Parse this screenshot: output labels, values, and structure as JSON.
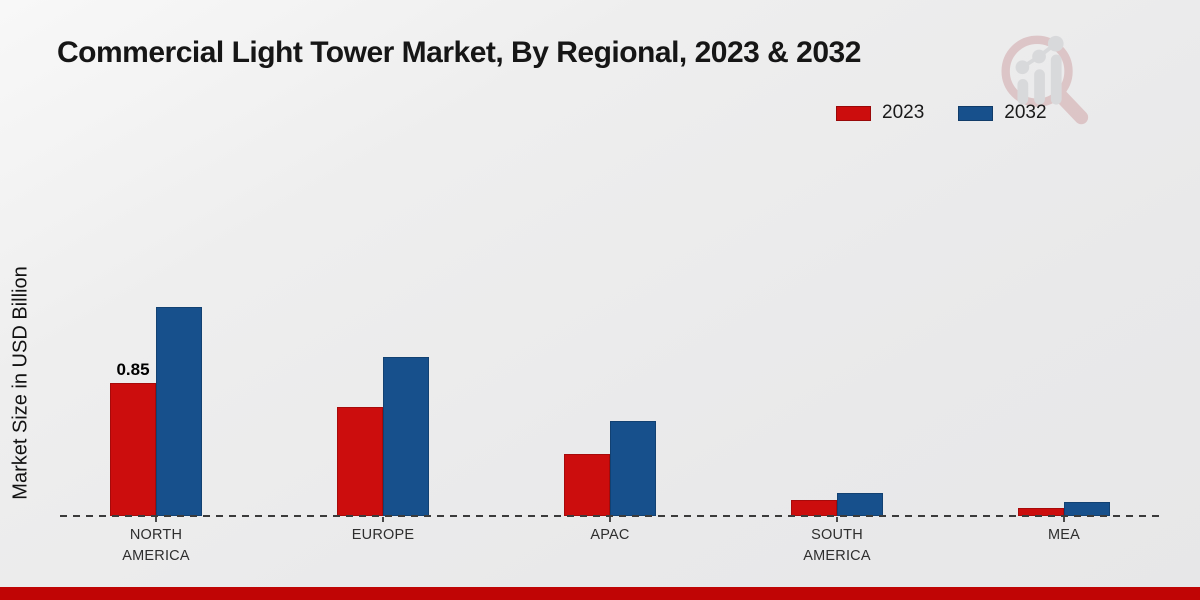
{
  "title": "Commercial Light Tower Market, By Regional, 2023 & 2032",
  "y_axis_label": "Market Size in USD Billion",
  "legend": {
    "position": "top-right",
    "items": [
      {
        "label": "2023",
        "color": "#cc0d0d"
      },
      {
        "label": "2032",
        "color": "#17508c"
      }
    ]
  },
  "chart_data": {
    "type": "bar",
    "categories": [
      "NORTH AMERICA",
      "EUROPE",
      "APAC",
      "SOUTH AMERICA",
      "MEA"
    ],
    "series": [
      {
        "name": "2023",
        "color": "#cc0d0d",
        "values": [
          0.85,
          0.7,
          0.4,
          0.1,
          0.05
        ]
      },
      {
        "name": "2032",
        "color": "#17508c",
        "values": [
          1.34,
          1.02,
          0.61,
          0.15,
          0.09
        ]
      }
    ],
    "annotations": [
      {
        "series_index": 0,
        "category_index": 0,
        "text": "0.85"
      }
    ],
    "title": "Commercial Light Tower Market, By Regional, 2023 & 2032",
    "xlabel": "",
    "ylabel": "Market Size in USD Billion",
    "ylim": [
      0,
      1.4
    ],
    "grid": false,
    "x_axis_style": "dashed-baseline",
    "y_axis_ticks_visible": false
  },
  "colors": {
    "series_2023": "#cc0d0d",
    "series_2032": "#17508c",
    "footer_accent": "#c00505",
    "baseline": "#3b3b3b",
    "background": "#eaeaea"
  },
  "watermark": {
    "name": "market-research-future-logo"
  }
}
